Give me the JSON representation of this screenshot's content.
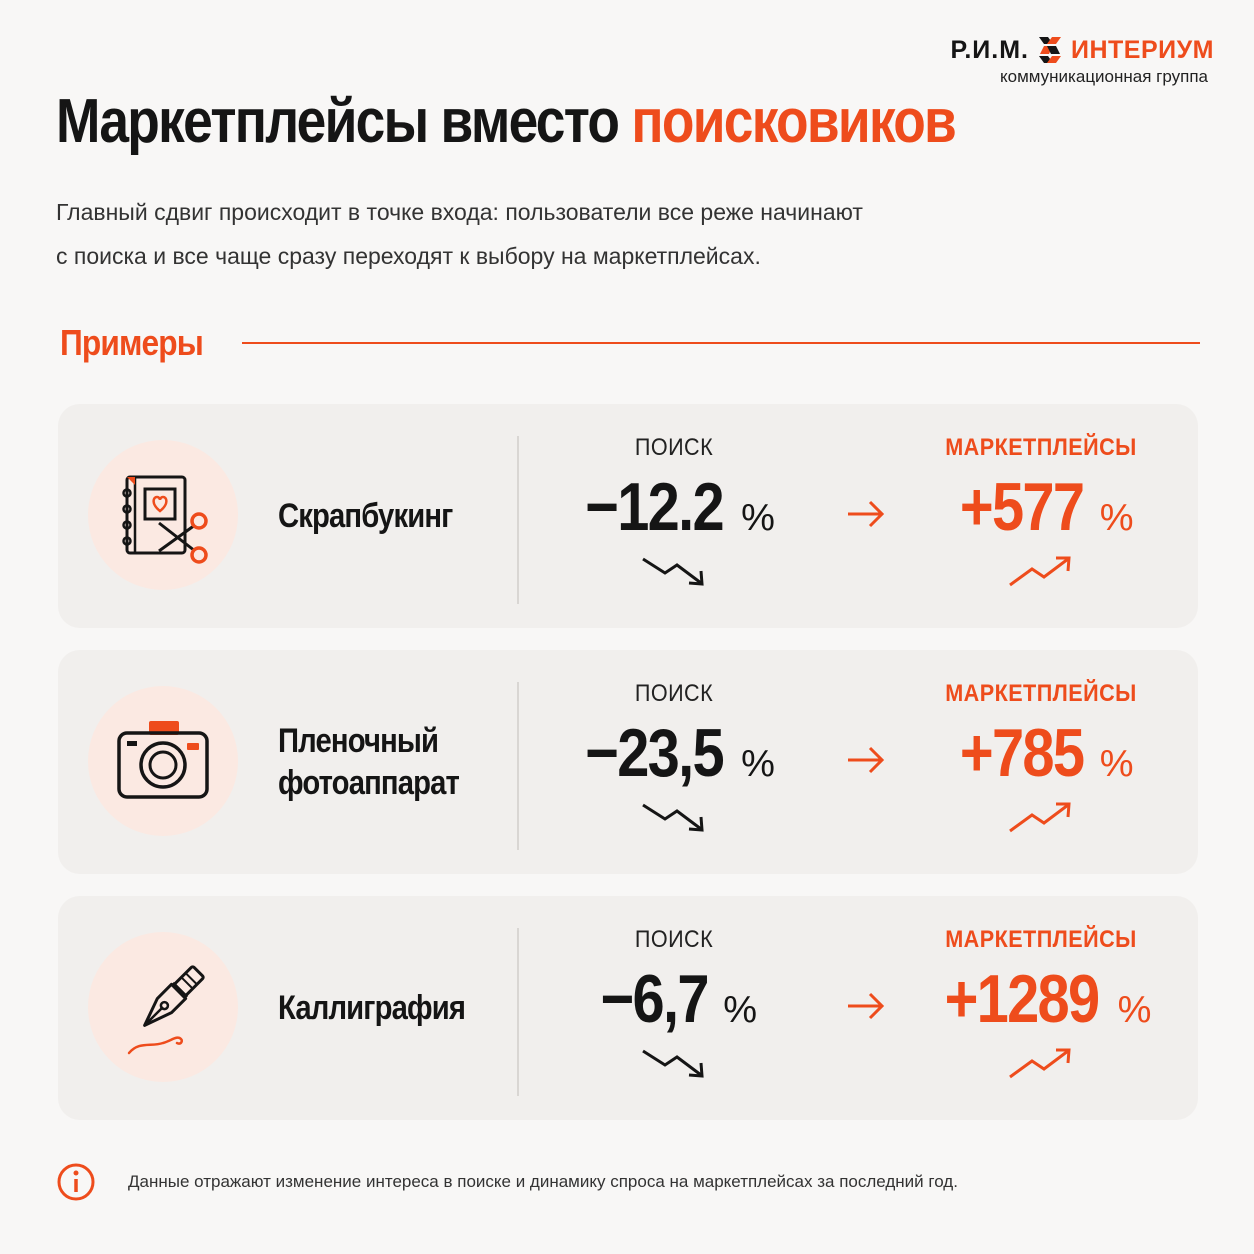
{
  "brand": {
    "name_left": "Р.И.М.",
    "name_right": "ИНТЕРИУМ",
    "subtitle": "коммуникационная группа",
    "accent_color": "#ee4c1c"
  },
  "title": {
    "plain": "Маркетплейсы вместо",
    "accent": "поисковиков"
  },
  "lead": {
    "line1": "Главный сдвиг происходит в точке входа: пользователи все реже начинают",
    "line2": "с поиска и все чаще сразу переходят к выбору на маркетплейсах."
  },
  "section": {
    "title": "Примеры"
  },
  "examples": [
    {
      "icon": "scrapbook-scissors-icon",
      "name_line1": "Скрапбукинг",
      "name_line2": "",
      "search_label": "ПОИСК",
      "search_value": "−12.2",
      "search_unit": "%",
      "search_trend": "down",
      "market_label": "МАРКЕТПЛЕЙСЫ",
      "market_value": "+577",
      "market_unit": "%",
      "market_trend": "up"
    },
    {
      "icon": "film-camera-icon",
      "name_line1": "Пленочный",
      "name_line2": "фотоаппарат",
      "search_label": "ПОИСК",
      "search_value": "−23,5",
      "search_unit": "%",
      "search_trend": "down",
      "market_label": "МАРКЕТПЛЕЙСЫ",
      "market_value": "+785",
      "market_unit": "%",
      "market_trend": "up"
    },
    {
      "icon": "fountain-pen-icon",
      "name_line1": "Каллиграфия",
      "name_line2": "",
      "search_label": "ПОИСК",
      "search_value": "−6,7",
      "search_unit": "%",
      "search_trend": "down",
      "market_label": "МАРКЕТПЛЕЙСЫ",
      "market_value": "+1289",
      "market_unit": "%",
      "market_trend": "up"
    }
  ],
  "footer": {
    "icon": "info-icon",
    "note": "Данные отражают изменение интереса в поиске и динамику спроса на маркетплейсах за последний год."
  }
}
